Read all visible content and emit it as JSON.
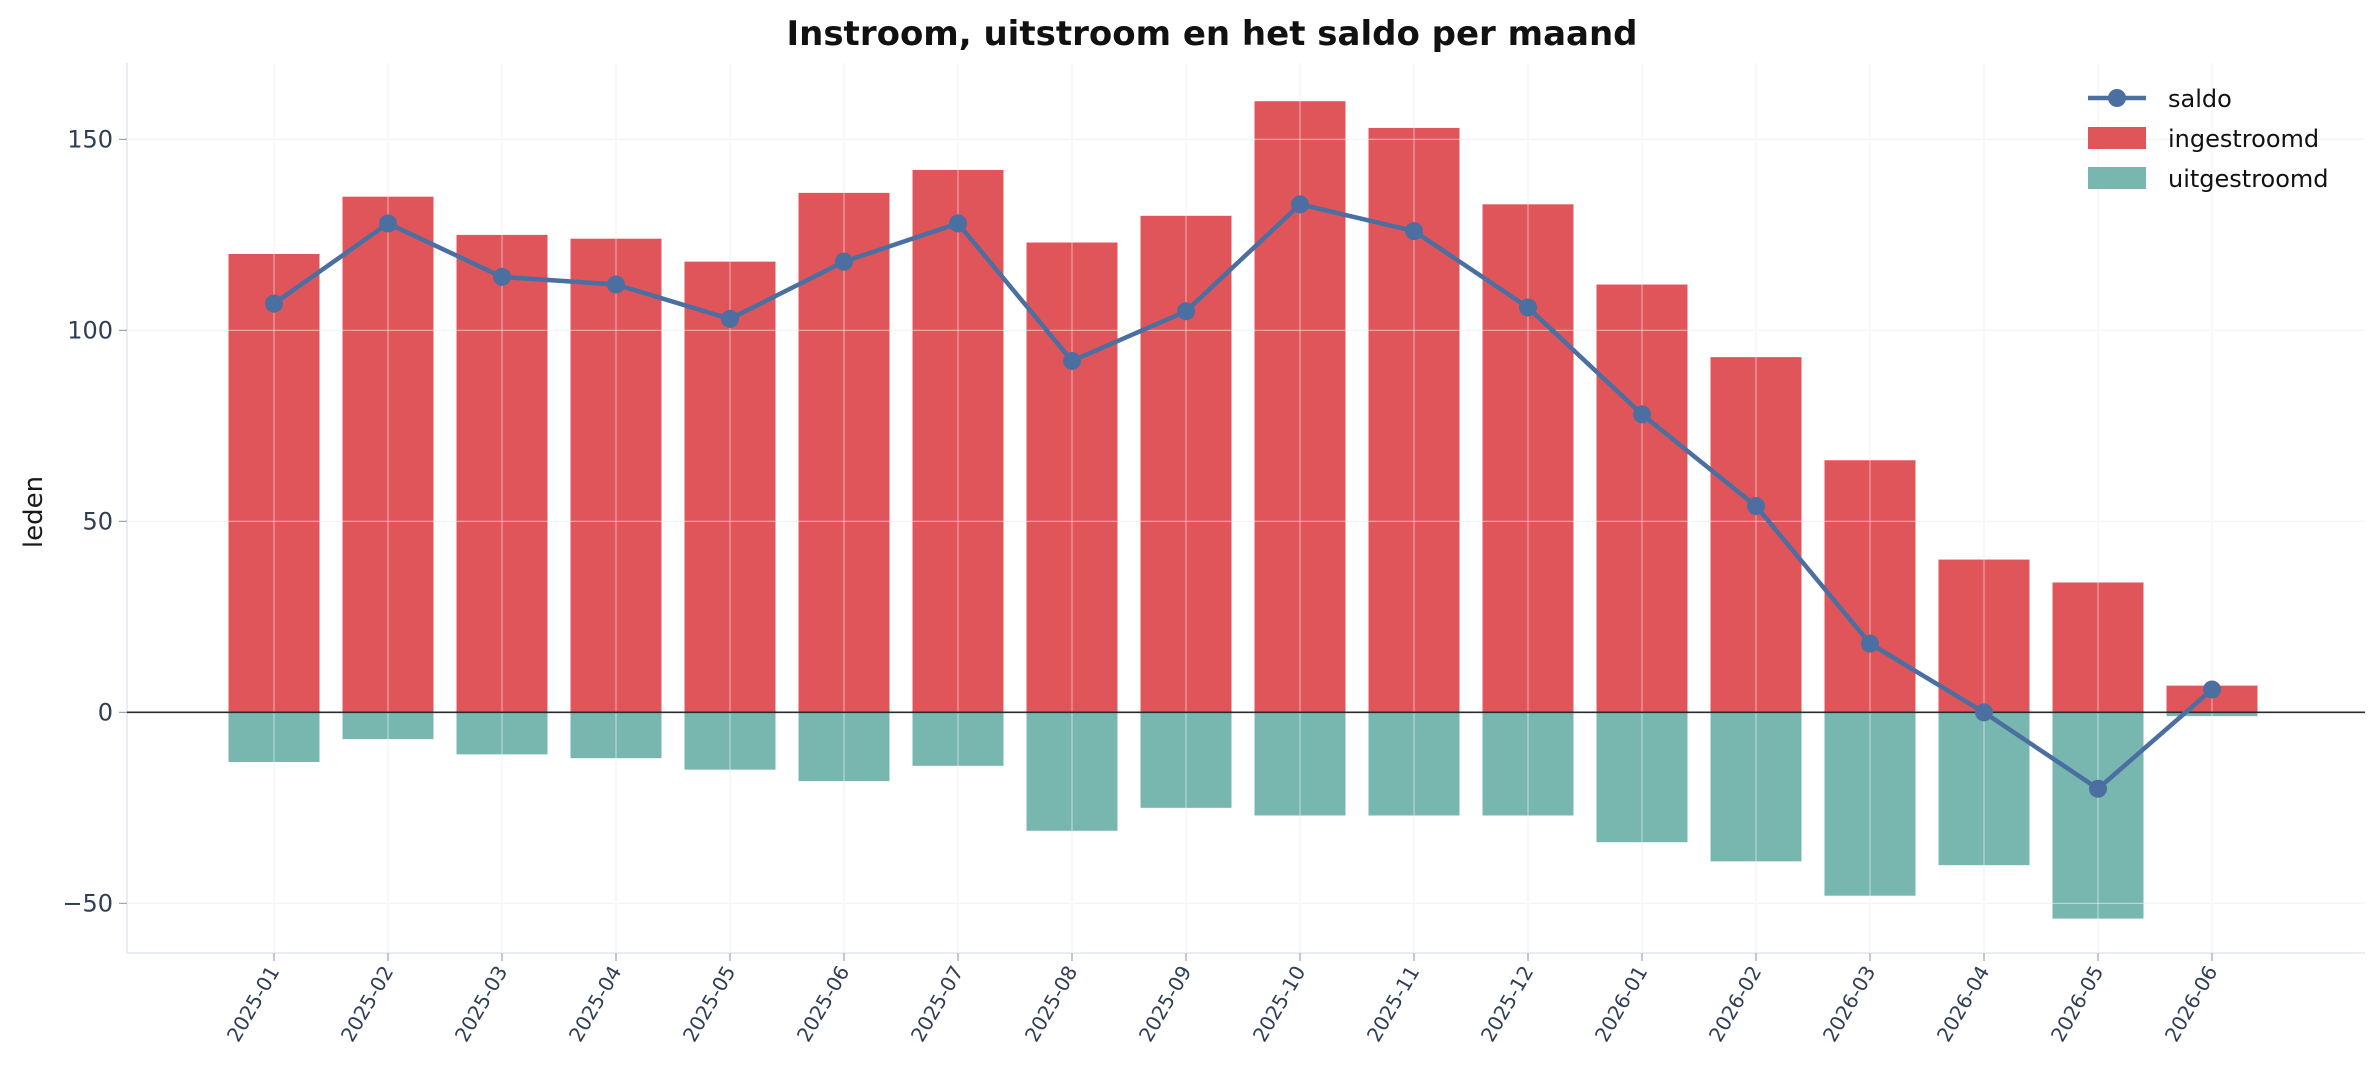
{
  "chart_data": {
    "type": "bar",
    "title": "Instroom, uitstroom en het saldo per maand",
    "xlabel": "",
    "ylabel": "leden",
    "ylim": [
      -63,
      170
    ],
    "yticks": [
      -50,
      0,
      50,
      100,
      150
    ],
    "grid": true,
    "legend_position": "top-right",
    "categories": [
      "2025-01",
      "2025-02",
      "2025-03",
      "2025-04",
      "2025-05",
      "2025-06",
      "2025-07",
      "2025-08",
      "2025-09",
      "2025-10",
      "2025-11",
      "2025-12",
      "2026-01",
      "2026-02",
      "2026-03",
      "2026-04",
      "2026-05",
      "2026-06"
    ],
    "series": [
      {
        "name": "ingestroomd",
        "kind": "bar",
        "color": "#e0555a",
        "values": [
          120,
          135,
          125,
          124,
          118,
          136,
          142,
          123,
          130,
          160,
          153,
          133,
          112,
          93,
          66,
          40,
          34,
          7
        ]
      },
      {
        "name": "uitgestroomd",
        "kind": "bar",
        "color": "#78b6b0",
        "values": [
          -13,
          -7,
          -11,
          -12,
          -15,
          -18,
          -14,
          -31,
          -25,
          -27,
          -27,
          -27,
          -34,
          -39,
          -48,
          -40,
          -54,
          -1
        ]
      },
      {
        "name": "saldo",
        "kind": "line",
        "color": "#4a6fa0",
        "values": [
          107,
          128,
          114,
          112,
          103,
          118,
          128,
          92,
          105,
          133,
          126,
          106,
          78,
          54,
          18,
          0,
          -20,
          6
        ]
      }
    ]
  }
}
